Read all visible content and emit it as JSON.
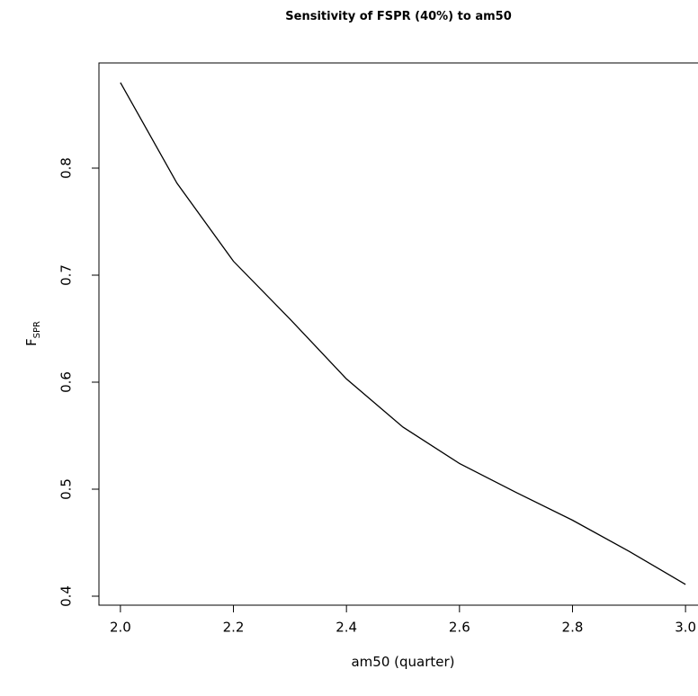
{
  "chart_data": {
    "type": "line",
    "title": "Sensitivity of FSPR (40%) to am50",
    "xlabel": "am50 (quarter)",
    "ylabel": "F",
    "ylabel_sub": "SPR",
    "x": [
      2.0,
      2.1,
      2.2,
      2.3,
      2.4,
      2.5,
      2.6,
      2.7,
      2.8,
      2.9,
      3.0
    ],
    "series": [
      {
        "color": "#000000",
        "values": [
          0.88,
          0.786,
          0.713,
          0.659,
          0.603,
          0.558,
          0.524,
          0.497,
          0.471,
          0.442,
          0.411
        ]
      }
    ],
    "xlim": [
      1.962,
      3.038
    ],
    "ylim": [
      0.3916,
      0.8983
    ],
    "xticks": [
      {
        "value": 2.0,
        "label": "2.0"
      },
      2.2,
      2.4,
      2.6,
      2.8,
      {
        "value": 3.0,
        "label": "3.0"
      }
    ],
    "yticks": [
      0.4,
      0.5,
      0.6,
      0.7,
      0.8
    ]
  }
}
